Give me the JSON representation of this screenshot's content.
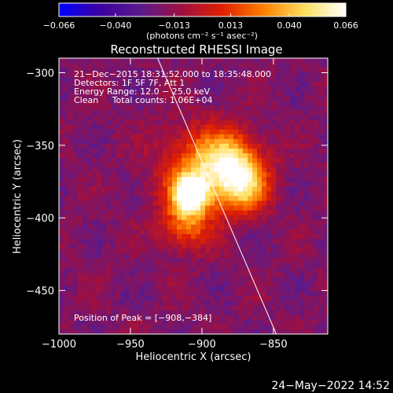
{
  "chart_data": {
    "type": "heatmap",
    "title": "Reconstructed RHESSI Image",
    "xlabel": "Heliocentric X (arcsec)",
    "ylabel": "Heliocentric Y (arcsec)",
    "xlim": [
      -1000,
      -812
    ],
    "ylim": [
      -480,
      -290
    ],
    "x_ticks": [
      {
        "value": -1000,
        "label": "−1000"
      },
      {
        "value": -950,
        "label": "−950"
      },
      {
        "value": -900,
        "label": "−900"
      },
      {
        "value": -850,
        "label": "−850"
      }
    ],
    "y_ticks": [
      {
        "value": -300,
        "label": "−300"
      },
      {
        "value": -350,
        "label": "−350"
      },
      {
        "value": -400,
        "label": "−400"
      },
      {
        "value": -450,
        "label": "−450"
      }
    ],
    "colorbar": {
      "min": -0.066,
      "max": 0.066,
      "ticks": [
        {
          "value": -0.066,
          "label": "−0.066"
        },
        {
          "value": -0.04,
          "label": "−0.040"
        },
        {
          "value": -0.013,
          "label": "−0.013"
        },
        {
          "value": 0.013,
          "label": "0.013"
        },
        {
          "value": 0.04,
          "label": "0.040"
        },
        {
          "value": 0.066,
          "label": "0.066"
        }
      ],
      "unit_label": "(photons cm⁻² s⁻¹ asec⁻²)",
      "colors": [
        "#0000ff",
        "#3c00a0",
        "#5a1a8c",
        "#a01040",
        "#e02000",
        "#ff8000",
        "#ffe060",
        "#ffffff"
      ]
    },
    "peak": {
      "x": -908,
      "y": -384,
      "value": 0.066
    },
    "sources": [
      {
        "x": -908,
        "y": -384,
        "amplitude": 0.066,
        "sigma": 8
      },
      {
        "x": -900,
        "y": -368,
        "amplitude": 0.03,
        "sigma": 20
      },
      {
        "x": -878,
        "y": -362,
        "amplitude": 0.03,
        "sigma": 14
      },
      {
        "x": -870,
        "y": -380,
        "amplitude": 0.024,
        "sigma": 12
      },
      {
        "x": -912,
        "y": -405,
        "amplitude": 0.018,
        "sigma": 12
      }
    ],
    "limb": [
      {
        "x": -931,
        "y": -290
      },
      {
        "x": -848,
        "y": -480
      }
    ],
    "annotations": [
      "21−Dec−2015 18:31:52.000 to 18:35:48.000",
      "Detectors: 1F 5F 7F, Att 1",
      "Energy Range: 12.0 − 25.0 keV",
      "Clean     Total counts: 1.06E+04"
    ],
    "peak_label": "Position of Peak = [−908,−384]"
  },
  "footer": {
    "timestamp": "24−May−2022 14:52"
  }
}
